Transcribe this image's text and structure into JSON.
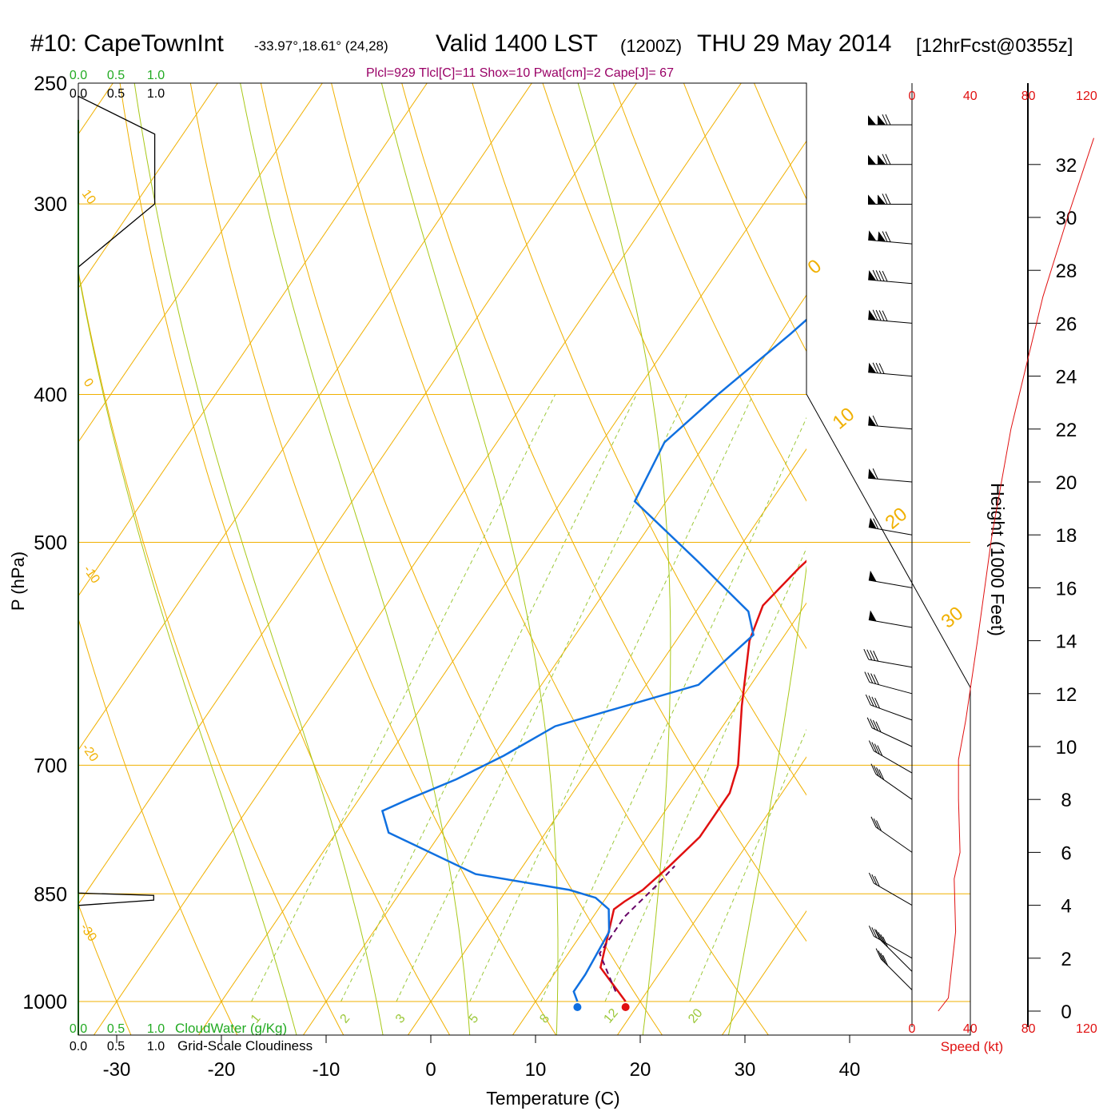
{
  "header": {
    "station": "#10: CapeTownInt",
    "coords": "-33.97°,18.61° (24,28)",
    "valid": "Valid 1400 LST",
    "run_z": "(1200Z)",
    "date": "THU 29 May 2014",
    "forecast": "[12hrFcst@0355z]"
  },
  "indices": "Plcl=929 Tlcl[C]=11 Shox=10 Pwat[cm]=2 Cape[J]= 67",
  "colors": {
    "temperature": "#e01010",
    "dewpoint": "#1070e0",
    "isotherm": "#f0b000",
    "dry_adiabat": "#f0b000",
    "moist_adiabat": "#a8c818",
    "mixing_ratio": "#9cc83a",
    "parcel": "#660066",
    "cloud_water": "#22aa22",
    "wind_speed": "#e01010"
  },
  "chart_data": {
    "type": "line",
    "xlabel": "Temperature (C)",
    "ylabel": "P (hPa)",
    "x_ticks": [
      -30,
      -20,
      -10,
      0,
      10,
      20,
      30,
      40
    ],
    "y_ticks": [
      250,
      300,
      400,
      500,
      700,
      850,
      1000
    ],
    "xlim": [
      -35,
      40
    ],
    "ylim": [
      1000,
      250
    ],
    "y_scale": "log",
    "series": [
      {
        "name": "temperature",
        "points": [
          [
            18.6,
            1000
          ],
          [
            14,
            950
          ],
          [
            11.5,
            870
          ],
          [
            12,
            860
          ],
          [
            13,
            845
          ],
          [
            14,
            815
          ],
          [
            15,
            780
          ],
          [
            15,
            730
          ],
          [
            14,
            700
          ],
          [
            10.5,
            640
          ],
          [
            7,
            580
          ],
          [
            6,
            550
          ],
          [
            7,
            520
          ],
          [
            9,
            480
          ],
          [
            10,
            440
          ],
          [
            8,
            400
          ],
          [
            4,
            370
          ],
          [
            0,
            340
          ],
          [
            -2,
            310
          ],
          [
            -2,
            280
          ],
          [
            -4,
            255
          ]
        ]
      },
      {
        "name": "dewpoint",
        "points": [
          [
            14,
            1000
          ],
          [
            13,
            985
          ],
          [
            13,
            960
          ],
          [
            12.5,
            900
          ],
          [
            11,
            870
          ],
          [
            9,
            855
          ],
          [
            6,
            845
          ],
          [
            -4,
            825
          ],
          [
            -15,
            775
          ],
          [
            -17,
            750
          ],
          [
            -15,
            735
          ],
          [
            -12,
            715
          ],
          [
            -9,
            690
          ],
          [
            -6,
            660
          ],
          [
            5,
            620
          ],
          [
            7,
            575
          ],
          [
            5,
            555
          ],
          [
            -3,
            515
          ],
          [
            -13,
            470
          ],
          [
            -14,
            430
          ],
          [
            -12,
            400
          ],
          [
            -9,
            365
          ],
          [
            -7,
            340
          ],
          [
            -8,
            318
          ],
          [
            -10,
            300
          ],
          [
            -15,
            260
          ]
        ]
      },
      {
        "name": "parcel",
        "points": [
          [
            17,
            985
          ],
          [
            13,
            930
          ],
          [
            13,
            880
          ],
          [
            14,
            840
          ],
          [
            14.5,
            815
          ]
        ]
      }
    ],
    "isotherm_labels": [
      "-20",
      "-10",
      "0",
      "10",
      "20",
      "30"
    ],
    "dry_adiabat_labels": [
      "10",
      "0",
      "-10",
      "-20",
      "-30",
      "0",
      "10",
      "20",
      "30"
    ],
    "mixing_ratio_labels": [
      "1",
      "2",
      "3",
      "5",
      "8",
      "12",
      "20"
    ],
    "cloud_axis": {
      "water_ticks": [
        "0.0",
        "0.5",
        "1.0"
      ],
      "cover_ticks": [
        "0.0",
        "0.5",
        "1.0"
      ],
      "water_label": "CloudWater (g/Kg)",
      "cover_label": "Grid-Scale Cloudiness",
      "cloudiness": [
        [
          0.0,
          300
        ],
        [
          0.0,
          255
        ],
        [
          0.73,
          270
        ],
        [
          0.73,
          300
        ],
        [
          0.0,
          330
        ],
        [
          0.0,
          849
        ],
        [
          0.72,
          852
        ],
        [
          0.72,
          858
        ],
        [
          0.0,
          865
        ]
      ]
    },
    "height_axis": {
      "label": "Height (1000 Feet)",
      "ticks": [
        0,
        2,
        4,
        6,
        8,
        10,
        12,
        14,
        16,
        18,
        20,
        22,
        24,
        26,
        28,
        30,
        32
      ]
    },
    "speed_axis": {
      "label": "Speed (kt)",
      "ticks": [
        0,
        40,
        80,
        120
      ],
      "profile": [
        [
          18,
          0
        ],
        [
          25,
          0.5
        ],
        [
          30,
          3
        ],
        [
          29,
          5
        ],
        [
          33,
          6
        ],
        [
          32,
          8
        ],
        [
          32,
          9.5
        ],
        [
          37,
          11
        ],
        [
          45,
          14
        ],
        [
          55,
          18
        ],
        [
          68,
          22
        ],
        [
          90,
          27
        ],
        [
          107,
          30
        ],
        [
          125,
          33
        ]
      ]
    },
    "wind_barbs": [
      {
        "height_kft": 0.8,
        "speed_kt": 45,
        "direction_deg": 315
      },
      {
        "height_kft": 1.5,
        "speed_kt": 45,
        "direction_deg": 315
      },
      {
        "height_kft": 2,
        "speed_kt": 35,
        "direction_deg": 300
      },
      {
        "height_kft": 4,
        "speed_kt": 30,
        "direction_deg": 300
      },
      {
        "height_kft": 6,
        "speed_kt": 35,
        "direction_deg": 305
      },
      {
        "height_kft": 8,
        "speed_kt": 40,
        "direction_deg": 305
      },
      {
        "height_kft": 9,
        "speed_kt": 40,
        "direction_deg": 300
      },
      {
        "height_kft": 10,
        "speed_kt": 40,
        "direction_deg": 295
      },
      {
        "height_kft": 11,
        "speed_kt": 40,
        "direction_deg": 290
      },
      {
        "height_kft": 12,
        "speed_kt": 40,
        "direction_deg": 285
      },
      {
        "height_kft": 13,
        "speed_kt": 40,
        "direction_deg": 280
      },
      {
        "height_kft": 14.5,
        "speed_kt": 50,
        "direction_deg": 280
      },
      {
        "height_kft": 16,
        "speed_kt": 55,
        "direction_deg": 280
      },
      {
        "height_kft": 18,
        "speed_kt": 60,
        "direction_deg": 280
      },
      {
        "height_kft": 20,
        "speed_kt": 60,
        "direction_deg": 275
      },
      {
        "height_kft": 22,
        "speed_kt": 65,
        "direction_deg": 275
      },
      {
        "height_kft": 24,
        "speed_kt": 80,
        "direction_deg": 275
      },
      {
        "height_kft": 26,
        "speed_kt": 90,
        "direction_deg": 275
      },
      {
        "height_kft": 27.5,
        "speed_kt": 90,
        "direction_deg": 275
      },
      {
        "height_kft": 29,
        "speed_kt": 120,
        "direction_deg": 275
      },
      {
        "height_kft": 30.5,
        "speed_kt": 120,
        "direction_deg": 270
      },
      {
        "height_kft": 32,
        "speed_kt": 120,
        "direction_deg": 270
      },
      {
        "height_kft": 33.5,
        "speed_kt": 120,
        "direction_deg": 270
      }
    ],
    "grid": true,
    "legend": "none"
  }
}
